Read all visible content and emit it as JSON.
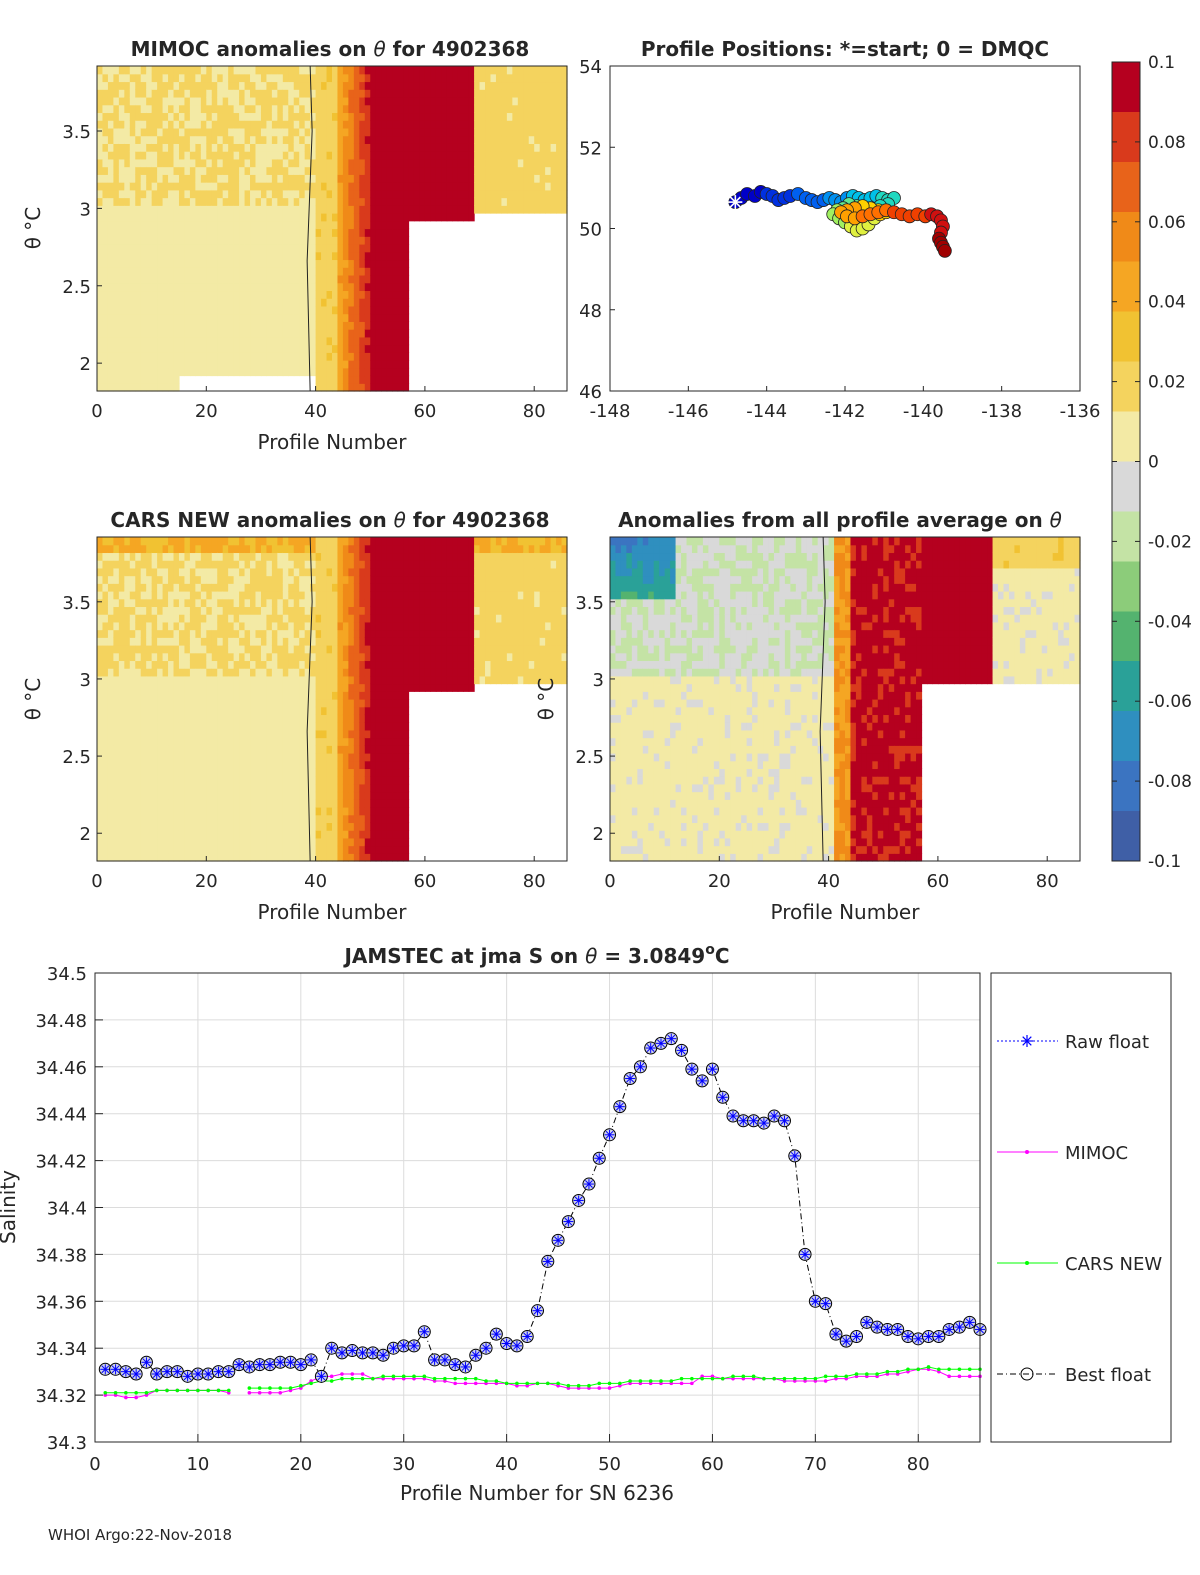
{
  "page": {
    "footer": "WHOI Argo:22-Nov-2018"
  },
  "colorbar": {
    "ticks": [
      "0.1",
      "0.08",
      "0.06",
      "0.04",
      "0.02",
      "0",
      "-0.02",
      "-0.04",
      "-0.06",
      "-0.08",
      "-0.1"
    ],
    "range": [
      -0.1,
      0.1
    ],
    "colors": [
      "#3f5fa6",
      "#3b74c1",
      "#2f8fbf",
      "#2aa198",
      "#54b36f",
      "#8ccc7a",
      "#c4e3a5",
      "#d9d9d9",
      "#f3eaa5",
      "#f4d35e",
      "#f1c232",
      "#f5a623",
      "#f08a18",
      "#e8631a",
      "#d93a1c",
      "#b5001f"
    ]
  },
  "panels": [
    {
      "id": "mimoc",
      "title_text": "MIMOC anomalies on",
      "title_theta": "θ",
      "title_suffix": " for 4902368",
      "xlabel": "Profile Number",
      "ylabel": "θ °C",
      "xticks": [
        "0",
        "20",
        "40",
        "60",
        "80"
      ],
      "yticks": [
        "3.5",
        "3",
        "2.5",
        "2"
      ],
      "xlim": [
        0,
        86
      ],
      "ylim": [
        1.82,
        3.92
      ]
    },
    {
      "id": "cars",
      "title_text": "CARS NEW anomalies on",
      "title_theta": "θ",
      "title_suffix": " for 4902368",
      "xlabel": "Profile Number",
      "ylabel": "θ °C",
      "xticks": [
        "0",
        "20",
        "40",
        "60",
        "80"
      ],
      "yticks": [
        "3.5",
        "3",
        "2.5",
        "2"
      ],
      "xlim": [
        0,
        86
      ],
      "ylim": [
        1.82,
        3.92
      ]
    },
    {
      "id": "avg",
      "title_text": "Anomalies from all profile average on",
      "title_theta": "θ",
      "title_suffix": "",
      "xlabel": "Profile Number",
      "ylabel": "θ °C",
      "xticks": [
        "0",
        "20",
        "40",
        "60",
        "80"
      ],
      "yticks": [
        "3.5",
        "3",
        "2.5",
        "2"
      ],
      "xlim": [
        0,
        86
      ],
      "ylim": [
        1.82,
        3.92
      ]
    }
  ],
  "positions": {
    "title": "Profile Positions: *=start; 0 = DMQC",
    "xticks": [
      "-148",
      "-146",
      "-144",
      "-142",
      "-140",
      "-138",
      "-136"
    ],
    "yticks": [
      "54",
      "52",
      "50",
      "48",
      "46"
    ],
    "xlim": [
      -148,
      -136
    ],
    "ylim": [
      46,
      54
    ],
    "start": {
      "lon": -144.8,
      "lat": 50.65
    },
    "lon": [
      -144.8,
      -144.65,
      -144.5,
      -144.3,
      -144.15,
      -144.0,
      -143.85,
      -143.7,
      -143.55,
      -143.4,
      -143.2,
      -143.0,
      -142.85,
      -142.7,
      -142.55,
      -142.4,
      -142.25,
      -142.1,
      -141.95,
      -141.8,
      -141.65,
      -141.5,
      -141.35,
      -141.2,
      -141.05,
      -140.9,
      -140.75,
      -140.9,
      -141.1,
      -141.3,
      -141.5,
      -141.7,
      -141.9,
      -142.05,
      -142.2,
      -142.3,
      -142.15,
      -142.0,
      -141.85,
      -141.7,
      -141.55,
      -141.4,
      -141.25,
      -141.1,
      -140.95,
      -141.15,
      -141.35,
      -141.55,
      -141.75,
      -141.95,
      -142.1,
      -141.95,
      -141.75,
      -141.55,
      -141.35,
      -141.15,
      -140.95,
      -140.75,
      -140.55,
      -140.35,
      -140.15,
      -139.95,
      -139.8,
      -139.65,
      -139.55,
      -139.5,
      -139.55,
      -139.6,
      -139.55,
      -139.5,
      -139.45
    ],
    "lat": [
      50.65,
      50.75,
      50.85,
      50.8,
      50.9,
      50.85,
      50.8,
      50.7,
      50.75,
      50.8,
      50.85,
      50.75,
      50.7,
      50.65,
      50.7,
      50.75,
      50.7,
      50.65,
      50.75,
      50.8,
      50.75,
      50.7,
      50.75,
      50.8,
      50.75,
      50.7,
      50.75,
      50.6,
      50.55,
      50.45,
      50.5,
      50.55,
      50.6,
      50.5,
      50.45,
      50.35,
      50.25,
      50.15,
      50.05,
      49.95,
      50.0,
      50.1,
      50.25,
      50.35,
      50.4,
      50.45,
      50.5,
      50.55,
      50.5,
      50.45,
      50.4,
      50.3,
      50.25,
      50.3,
      50.35,
      50.4,
      50.45,
      50.4,
      50.35,
      50.3,
      50.35,
      50.3,
      50.35,
      50.3,
      50.2,
      50.05,
      49.9,
      49.75,
      49.65,
      49.55,
      49.45
    ]
  },
  "chart_data": {
    "type": "line",
    "title_prefix": "JAMSTEC at jma S on",
    "title_theta": "θ",
    "title_value": " = 3.0849",
    "title_deg": "o",
    "title_unit": "C",
    "xlabel": "Profile Number for SN 6236",
    "ylabel": "Salinity",
    "xlim": [
      0,
      86
    ],
    "ylim": [
      34.3,
      34.5
    ],
    "grid": true,
    "legend_position": "right-outside",
    "xticks": [
      "0",
      "10",
      "20",
      "30",
      "40",
      "50",
      "60",
      "70",
      "80"
    ],
    "yticks": [
      "34.5",
      "34.48",
      "34.46",
      "34.44",
      "34.42",
      "34.4",
      "34.38",
      "34.36",
      "34.34",
      "34.32",
      "34.3"
    ],
    "series": [
      {
        "name": "Raw float",
        "color": "#0000ff",
        "style": "dotted-star"
      },
      {
        "name": "MIMOC",
        "color": "#ff00ff",
        "style": "solid-dot"
      },
      {
        "name": "CARS NEW",
        "color": "#00ff00",
        "style": "solid-dot"
      },
      {
        "name": "Best float",
        "color": "#000000",
        "style": "dashdot-circle"
      }
    ],
    "x": [
      1,
      2,
      3,
      4,
      5,
      6,
      7,
      8,
      9,
      10,
      11,
      12,
      13,
      14,
      15,
      16,
      17,
      18,
      19,
      20,
      21,
      22,
      23,
      24,
      25,
      26,
      27,
      28,
      29,
      30,
      31,
      32,
      33,
      34,
      35,
      36,
      37,
      38,
      39,
      40,
      41,
      42,
      43,
      44,
      45,
      46,
      47,
      48,
      49,
      50,
      51,
      52,
      53,
      54,
      55,
      56,
      57,
      58,
      59,
      60,
      61,
      62,
      63,
      64,
      65,
      66,
      67,
      68,
      69,
      70,
      71,
      72,
      73,
      74,
      75,
      76,
      77,
      78,
      79,
      80,
      81,
      82,
      83,
      84,
      85,
      86
    ],
    "float": [
      34.331,
      34.331,
      34.33,
      34.329,
      34.334,
      34.329,
      34.33,
      34.33,
      34.328,
      34.329,
      34.329,
      34.33,
      34.33,
      34.333,
      34.332,
      34.333,
      34.333,
      34.334,
      34.334,
      34.333,
      34.335,
      34.328,
      34.34,
      34.338,
      34.339,
      34.338,
      34.338,
      34.337,
      34.34,
      34.341,
      34.341,
      34.347,
      34.335,
      34.335,
      34.333,
      34.332,
      34.337,
      34.34,
      34.346,
      34.342,
      34.341,
      34.345,
      34.356,
      34.377,
      34.386,
      34.394,
      34.403,
      34.41,
      34.421,
      34.431,
      34.443,
      34.455,
      34.46,
      34.468,
      34.47,
      34.472,
      34.467,
      34.459,
      34.454,
      34.459,
      34.447,
      34.439,
      34.437,
      34.437,
      34.436,
      34.439,
      34.437,
      34.422,
      34.38,
      34.36,
      34.359,
      34.346,
      34.343,
      34.345,
      34.351,
      34.349,
      34.348,
      34.348,
      34.345,
      34.344,
      34.345,
      34.345,
      34.348,
      34.349,
      34.351,
      34.348
    ],
    "mimoc": [
      34.32,
      34.32,
      34.319,
      34.319,
      34.32,
      34.322,
      34.322,
      34.322,
      34.322,
      34.322,
      34.322,
      34.322,
      34.321,
      null,
      34.321,
      34.321,
      34.321,
      34.321,
      34.322,
      34.323,
      34.326,
      34.328,
      34.328,
      34.329,
      34.329,
      34.329,
      34.327,
      34.327,
      34.327,
      34.327,
      34.327,
      34.327,
      34.326,
      34.326,
      34.325,
      34.325,
      34.325,
      34.325,
      34.325,
      34.325,
      34.324,
      34.324,
      34.325,
      34.325,
      34.324,
      34.323,
      34.323,
      34.323,
      34.323,
      34.323,
      34.324,
      34.325,
      34.325,
      34.325,
      34.325,
      34.325,
      34.325,
      34.325,
      34.328,
      34.328,
      34.327,
      34.327,
      34.327,
      34.327,
      34.327,
      34.327,
      34.326,
      34.326,
      34.326,
      34.326,
      34.326,
      34.327,
      34.327,
      34.328,
      34.328,
      34.328,
      34.329,
      34.329,
      34.33,
      34.331,
      34.331,
      34.33,
      34.328,
      34.328,
      34.328,
      34.328
    ],
    "cars": [
      34.321,
      34.321,
      34.321,
      34.321,
      34.321,
      34.322,
      34.322,
      34.322,
      34.322,
      34.322,
      34.322,
      34.322,
      34.322,
      null,
      34.323,
      34.323,
      34.323,
      34.323,
      34.323,
      34.324,
      34.325,
      34.326,
      34.326,
      34.327,
      34.327,
      34.327,
      34.327,
      34.328,
      34.328,
      34.328,
      34.328,
      34.328,
      34.327,
      34.327,
      34.327,
      34.327,
      34.327,
      34.326,
      34.326,
      34.325,
      34.325,
      34.325,
      34.325,
      34.325,
      34.325,
      34.324,
      34.324,
      34.324,
      34.325,
      34.325,
      34.325,
      34.326,
      34.326,
      34.326,
      34.326,
      34.326,
      34.327,
      34.327,
      34.327,
      34.327,
      34.327,
      34.328,
      34.328,
      34.328,
      34.327,
      34.327,
      34.327,
      34.327,
      34.327,
      34.327,
      34.328,
      34.328,
      34.328,
      34.329,
      34.329,
      34.329,
      34.33,
      34.33,
      34.331,
      34.331,
      34.332,
      34.331,
      34.331,
      34.331,
      34.331,
      34.331
    ]
  }
}
